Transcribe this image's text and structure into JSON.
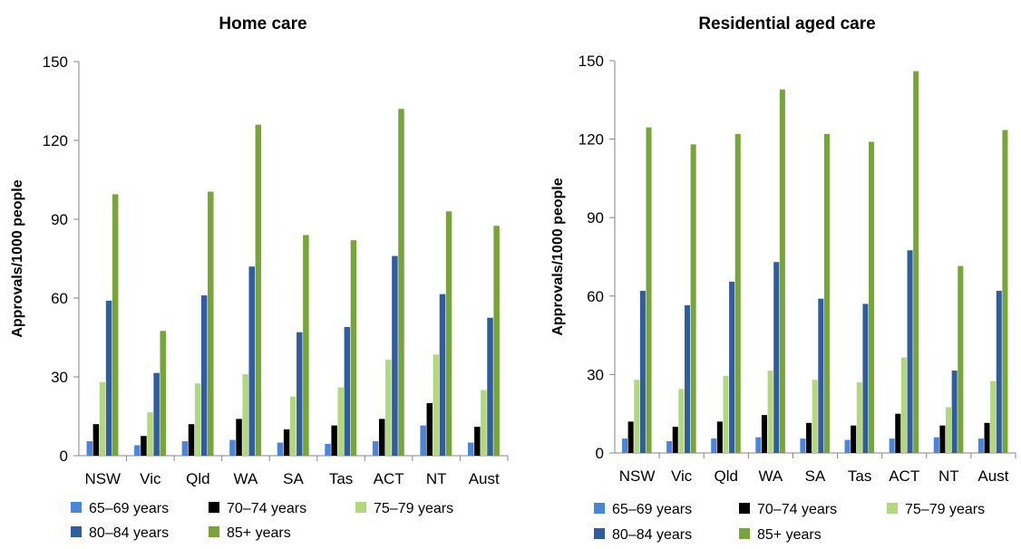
{
  "chart_data": [
    {
      "type": "bar",
      "title": "Home care",
      "xlabel": "",
      "ylabel": "Approvals/1000 people",
      "ylim": [
        0,
        150
      ],
      "yticks": [
        0,
        30,
        60,
        90,
        120,
        150
      ],
      "grid": false,
      "legend_position": "bottom",
      "categories": [
        "NSW",
        "Vic",
        "Qld",
        "WA",
        "SA",
        "Tas",
        "ACT",
        "NT",
        "Aust"
      ],
      "series": [
        {
          "name": "65–69 years",
          "color": "#4a86d8",
          "values": [
            5.5,
            4,
            5.5,
            6,
            5,
            4.5,
            5.5,
            11.5,
            5
          ]
        },
        {
          "name": "70–74 years",
          "color": "#000000",
          "values": [
            12,
            7.5,
            12,
            14,
            10,
            11.5,
            14,
            20,
            11
          ]
        },
        {
          "name": "75–79 years",
          "color": "#b3d77f",
          "values": [
            28,
            16.5,
            27.5,
            31,
            22.5,
            26,
            36.5,
            38.5,
            25
          ]
        },
        {
          "name": "80–84 years",
          "color": "#2f5d9e",
          "values": [
            59,
            31.5,
            61,
            72,
            47,
            49,
            76,
            61.5,
            52.5
          ]
        },
        {
          "name": "85+ years",
          "color": "#77a53a",
          "values": [
            99.5,
            47.5,
            100.5,
            126,
            84,
            82,
            132,
            93,
            87.5
          ]
        }
      ]
    },
    {
      "type": "bar",
      "title": "Residential aged care",
      "xlabel": "",
      "ylabel": "Approvals/1000 people",
      "ylim": [
        0,
        150
      ],
      "yticks": [
        0,
        30,
        60,
        90,
        120,
        150
      ],
      "grid": false,
      "legend_position": "bottom",
      "categories": [
        "NSW",
        "Vic",
        "Qld",
        "WA",
        "SA",
        "Tas",
        "ACT",
        "NT",
        "Aust"
      ],
      "series": [
        {
          "name": "65–69 years",
          "color": "#4a86d8",
          "values": [
            5.5,
            4.5,
            5.5,
            6,
            5.5,
            5,
            5.5,
            6,
            5.5
          ]
        },
        {
          "name": "70–74 years",
          "color": "#000000",
          "values": [
            12,
            10,
            12,
            14.5,
            11.5,
            10.5,
            15,
            10.5,
            11.5
          ]
        },
        {
          "name": "75–79 years",
          "color": "#b3d77f",
          "values": [
            28,
            24.5,
            29.5,
            31.5,
            28,
            27,
            36.5,
            17.5,
            27.5
          ]
        },
        {
          "name": "80–84 years",
          "color": "#2f5d9e",
          "values": [
            62,
            56.5,
            65.5,
            73,
            59,
            57,
            77.5,
            31.5,
            62
          ]
        },
        {
          "name": "85+ years",
          "color": "#77a53a",
          "values": [
            124.5,
            118,
            122,
            139,
            122,
            119,
            146,
            71.5,
            123.5
          ]
        }
      ]
    }
  ]
}
